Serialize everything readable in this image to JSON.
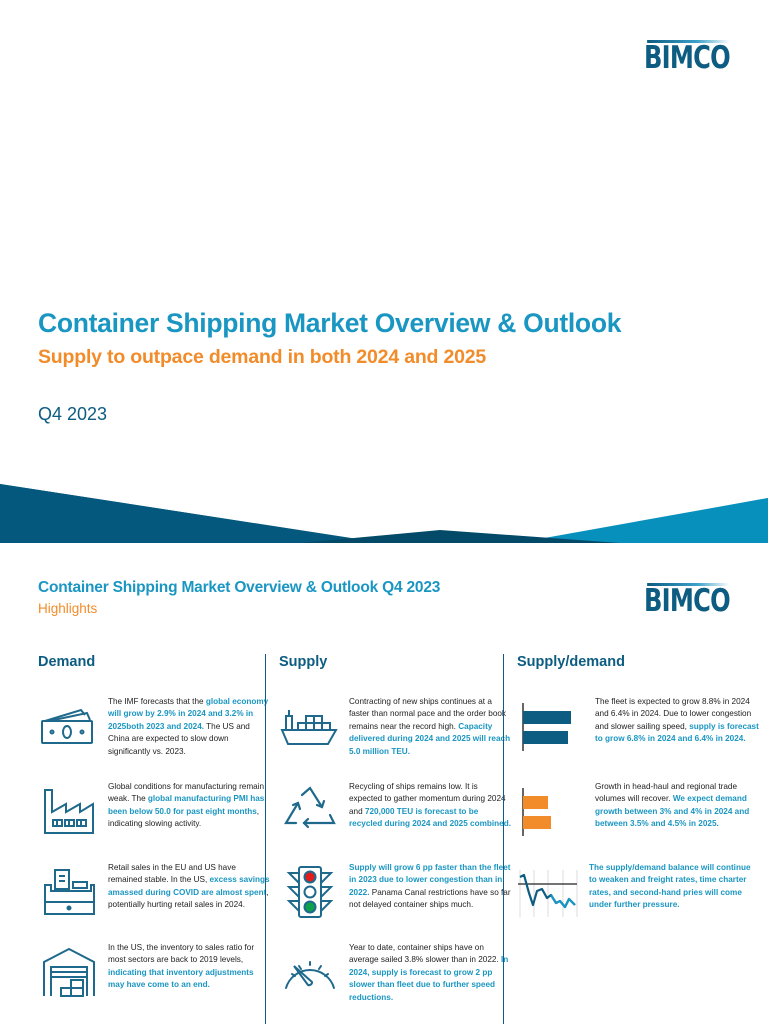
{
  "cover": {
    "logo": "BIMCO",
    "title": "Container Shipping Market Overview & Outlook",
    "subtitle": "Supply to outpace demand in both 2024 and 2025",
    "date": "Q4 2023"
  },
  "highlights": {
    "logo": "BIMCO",
    "title": "Container Shipping Market Overview & Outlook Q4 2023",
    "subtitle": "Highlights"
  },
  "colors": {
    "brand_dark": "#0d5c82",
    "brand_light": "#1a96c2",
    "accent_orange": "#f28c2a",
    "banner_dark": "#04587d",
    "banner_light": "#0890bd",
    "banner_deep": "#034a69"
  },
  "columns": {
    "demand": {
      "heading": "Demand",
      "items": [
        {
          "icon": "money-bill-icon",
          "parts": [
            {
              "t": "The IMF forecasts that the ",
              "hl": false
            },
            {
              "t": "global economy will grow by 2.9% in 2024 and 3.2% in 2025both 2023 and 2024.",
              "hl": true
            },
            {
              "t": " The US and China are expected to slow down significantly vs. 2023.",
              "hl": false
            }
          ]
        },
        {
          "icon": "factory-icon",
          "parts": [
            {
              "t": "Global conditions for manufacturing remain weak. The ",
              "hl": false
            },
            {
              "t": "global manufacturing PMI has been below 50.0 for past eight months",
              "hl": true
            },
            {
              "t": ", indicating slowing activity.",
              "hl": false
            }
          ]
        },
        {
          "icon": "cash-register-icon",
          "parts": [
            {
              "t": "Retail sales in the EU and US have remained stable. In the US, ",
              "hl": false
            },
            {
              "t": "excess savings amassed during COVID are almost spent",
              "hl": true
            },
            {
              "t": ", potentially hurting retail sales in 2024.",
              "hl": false
            }
          ]
        },
        {
          "icon": "warehouse-icon",
          "parts": [
            {
              "t": "In the US, the inventory to sales ratio for most sectors are back to 2019 levels, ",
              "hl": false
            },
            {
              "t": "indicating that inventory adjustments may have come to an end.",
              "hl": true
            }
          ]
        }
      ]
    },
    "supply": {
      "heading": "Supply",
      "items": [
        {
          "icon": "container-ship-icon",
          "parts": [
            {
              "t": "Contracting of new ships continues at a faster than normal pace and the order book remains near the record high. ",
              "hl": false
            },
            {
              "t": "Capacity delivered during 2024 and 2025 will reach 5.0 million TEU.",
              "hl": true
            }
          ]
        },
        {
          "icon": "recycle-icon",
          "parts": [
            {
              "t": "Recycling of ships remains low. It is expected to gather momentum during 2024 and ",
              "hl": false
            },
            {
              "t": "720,000 TEU is forecast to be recycled during 2024 and 2025 combined.",
              "hl": true
            }
          ]
        },
        {
          "icon": "traffic-light-icon",
          "parts": [
            {
              "t": "Supply will grow 6 pp faster than the fleet in 2023 due to lower congestion than in 2022.",
              "hl": true
            },
            {
              "t": " Panama Canal restrictions have so far not delayed container ships much.",
              "hl": false
            }
          ]
        },
        {
          "icon": "speedometer-icon",
          "parts": [
            {
              "t": "Year to date, container ships have on average sailed 3.8% slower than in 2022. ",
              "hl": false
            },
            {
              "t": "In 2024, supply is forecast to grow 2 pp slower than fleet due to further speed reductions.",
              "hl": true
            }
          ]
        }
      ]
    },
    "supply_demand": {
      "heading": "Supply/demand",
      "items": [
        {
          "icon": "supply-bars-icon",
          "parts": [
            {
              "t": "The fleet is expected to grow 8.8% in 2024 and 6.4% in 2024. Due to lower congestion and slower sailing speed, ",
              "hl": false
            },
            {
              "t": "supply is forecast to grow 6.8% in 2024 and 6.4% in 2024.",
              "hl": true
            }
          ]
        },
        {
          "icon": "demand-bars-icon",
          "parts": [
            {
              "t": "Growth in head-haul and regional trade volumes will recover. ",
              "hl": false
            },
            {
              "t": "We expect demand growth between 3% and 4% in 2024 and between 3.5% and 4.5% in 2025.",
              "hl": true
            }
          ]
        },
        {
          "icon": "declining-line-chart-icon",
          "parts": [
            {
              "t": "The supply/demand balance will continue to weaken and freight rates, time charter rates, and second-hand pries will come under further pressure.",
              "hl": true
            }
          ]
        }
      ]
    }
  }
}
